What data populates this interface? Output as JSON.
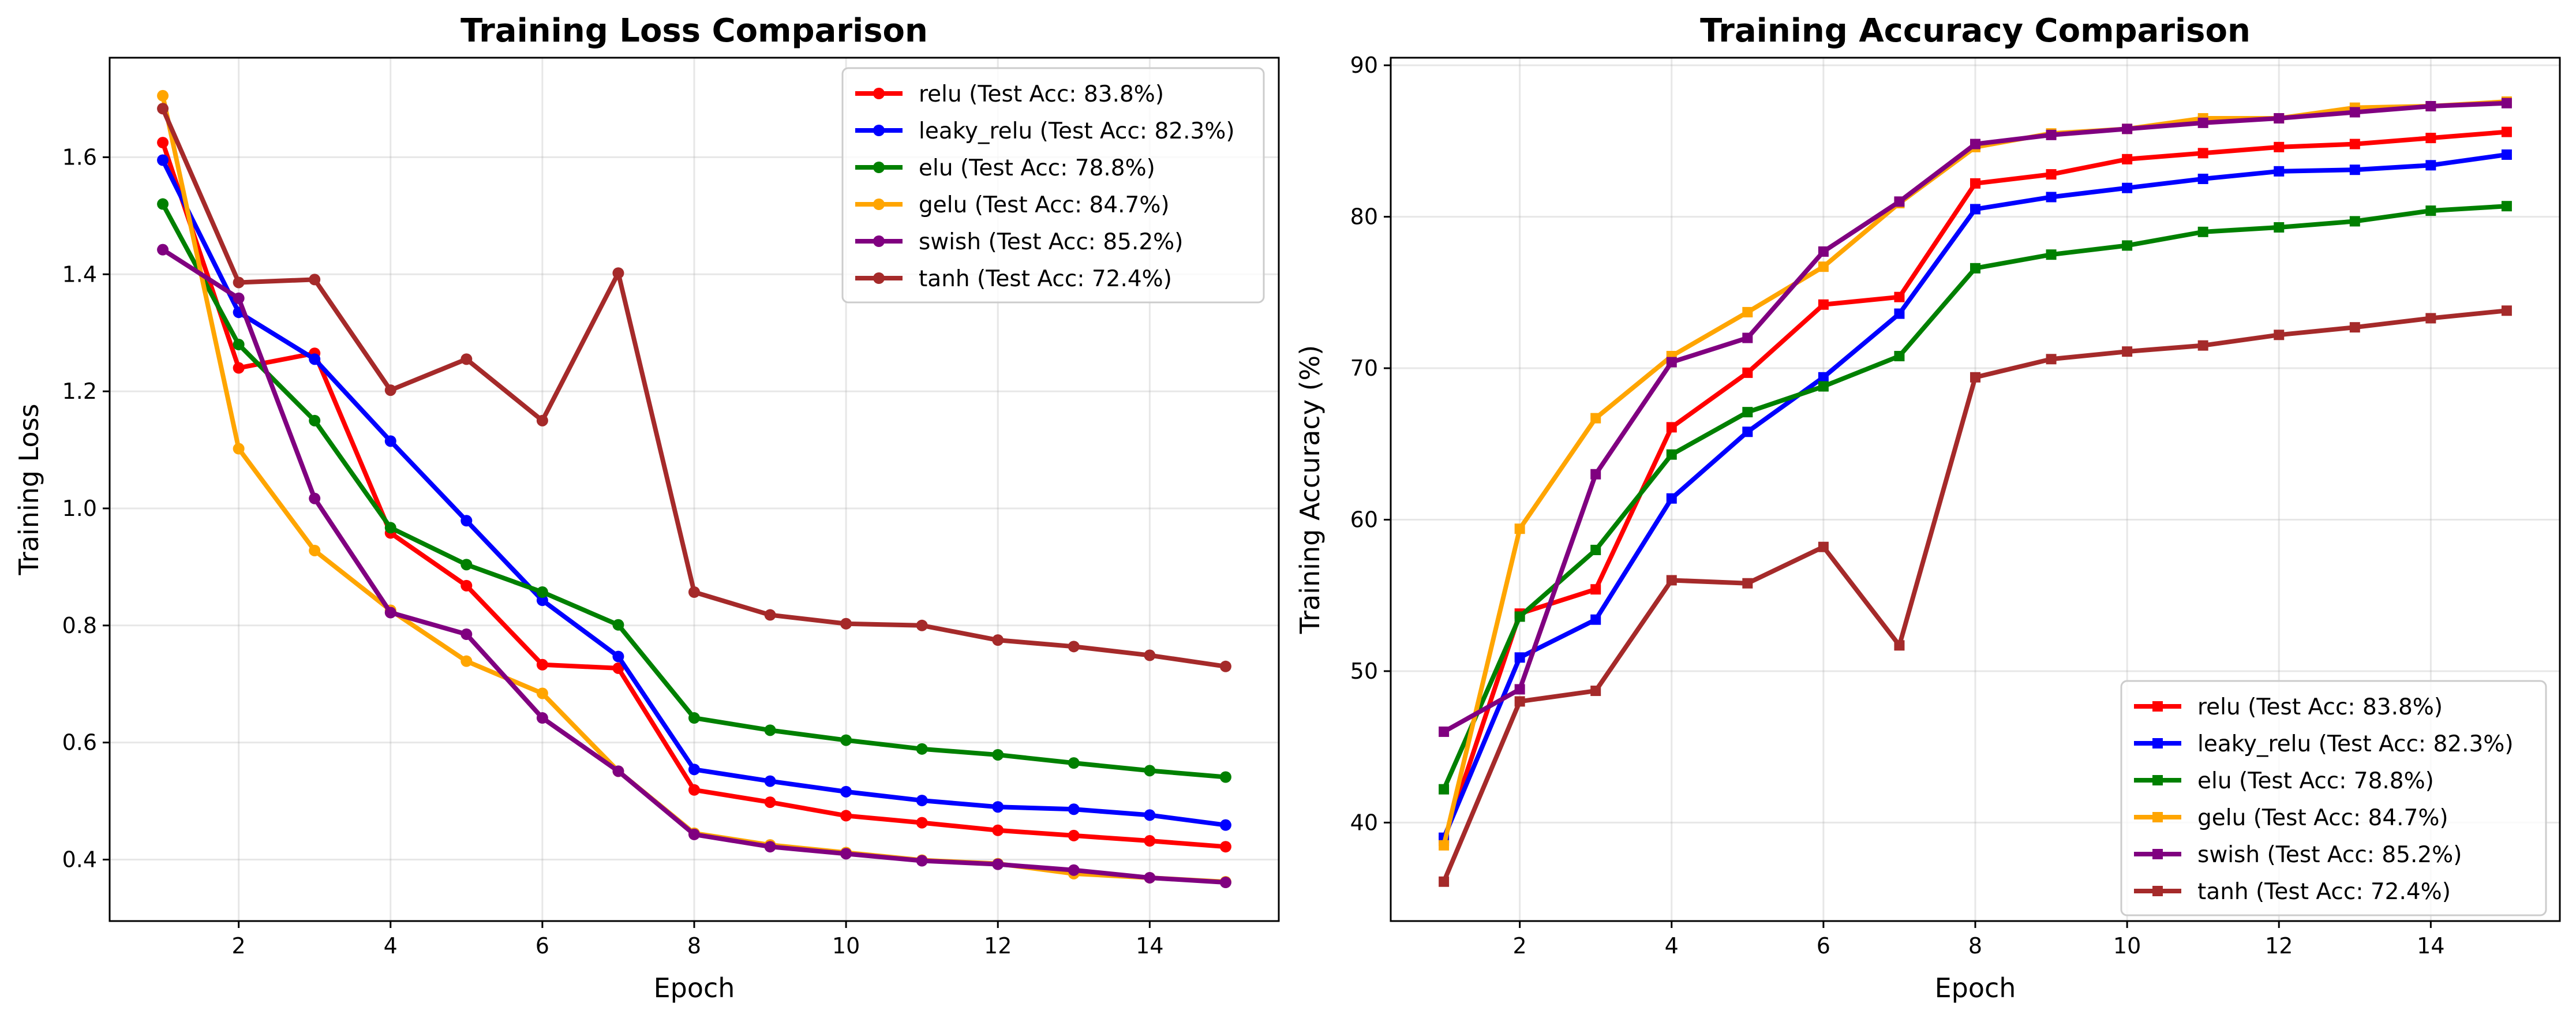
{
  "chart_data": [
    {
      "type": "line",
      "title": "Training Loss Comparison",
      "xlabel": "Epoch",
      "ylabel": "Training Loss",
      "xlim": [
        0.3,
        15.7
      ],
      "ylim": [
        0.295,
        1.77
      ],
      "xticks": [
        2,
        4,
        6,
        8,
        10,
        12,
        14
      ],
      "yticks": [
        0.4,
        0.6,
        0.8,
        1.0,
        1.2,
        1.4,
        1.6
      ],
      "ytick_labels": [
        "0.4",
        "0.6",
        "0.8",
        "1.0",
        "1.2",
        "1.4",
        "1.6"
      ],
      "grid": true,
      "marker": "circle",
      "legend_position": "upper right",
      "x": [
        1,
        2,
        3,
        4,
        5,
        6,
        7,
        8,
        9,
        10,
        11,
        12,
        13,
        14,
        15
      ],
      "series": [
        {
          "name": "relu (Test Acc: 83.8%)",
          "color": "#ff0000",
          "values": [
            1.625,
            1.24,
            1.265,
            0.958,
            0.868,
            0.733,
            0.727,
            0.519,
            0.498,
            0.475,
            0.463,
            0.45,
            0.441,
            0.432,
            0.422
          ]
        },
        {
          "name": "leaky_relu (Test Acc: 82.3%)",
          "color": "#0000ff",
          "values": [
            1.595,
            1.335,
            1.255,
            1.115,
            0.979,
            0.843,
            0.747,
            0.554,
            0.534,
            0.516,
            0.501,
            0.49,
            0.486,
            0.476,
            0.459
          ]
        },
        {
          "name": "elu (Test Acc: 78.8%)",
          "color": "#008000",
          "values": [
            1.52,
            1.28,
            1.15,
            0.967,
            0.904,
            0.857,
            0.801,
            0.642,
            0.621,
            0.604,
            0.589,
            0.579,
            0.565,
            0.552,
            0.541
          ]
        },
        {
          "name": "gelu (Test Acc: 84.7%)",
          "color": "#ffa500",
          "values": [
            1.705,
            1.102,
            0.928,
            0.826,
            0.739,
            0.684,
            0.551,
            0.445,
            0.425,
            0.412,
            0.399,
            0.393,
            0.376,
            0.369,
            0.362
          ]
        },
        {
          "name": "swish (Test Acc: 85.2%)",
          "color": "#800080",
          "values": [
            1.442,
            1.359,
            1.017,
            0.822,
            0.785,
            0.642,
            0.551,
            0.443,
            0.422,
            0.41,
            0.398,
            0.392,
            0.382,
            0.369,
            0.361
          ]
        },
        {
          "name": "tanh (Test Acc: 72.4%)",
          "color": "#a52a2a",
          "values": [
            1.683,
            1.386,
            1.391,
            1.202,
            1.255,
            1.15,
            1.402,
            0.857,
            0.818,
            0.803,
            0.8,
            0.775,
            0.764,
            0.749,
            0.73
          ]
        }
      ]
    },
    {
      "type": "line",
      "title": "Training Accuracy Comparison",
      "xlabel": "Epoch",
      "ylabel": "Training Accuracy (%)",
      "xlim": [
        0.3,
        15.7
      ],
      "ylim": [
        33.5,
        90.5
      ],
      "xticks": [
        2,
        4,
        6,
        8,
        10,
        12,
        14
      ],
      "yticks": [
        40,
        50,
        60,
        70,
        80,
        90
      ],
      "ytick_labels": [
        "40",
        "50",
        "60",
        "70",
        "80",
        "90"
      ],
      "grid": true,
      "marker": "square",
      "legend_position": "lower right",
      "x": [
        1,
        2,
        3,
        4,
        5,
        6,
        7,
        8,
        9,
        10,
        11,
        12,
        13,
        14,
        15
      ],
      "series": [
        {
          "name": "relu (Test Acc: 83.8%)",
          "color": "#ff0000",
          "values": [
            38.8,
            53.8,
            55.4,
            66.1,
            69.7,
            74.2,
            74.7,
            82.2,
            82.8,
            83.8,
            84.2,
            84.6,
            84.8,
            85.2,
            85.6
          ]
        },
        {
          "name": "leaky_relu (Test Acc: 82.3%)",
          "color": "#0000ff",
          "values": [
            39.0,
            50.9,
            53.4,
            61.4,
            65.8,
            69.4,
            73.6,
            80.5,
            81.3,
            81.9,
            82.5,
            83.0,
            83.1,
            83.4,
            84.1
          ]
        },
        {
          "name": "elu (Test Acc: 78.8%)",
          "color": "#008000",
          "values": [
            42.2,
            53.6,
            58.0,
            64.3,
            67.1,
            68.8,
            70.8,
            76.6,
            77.5,
            78.1,
            79.0,
            79.3,
            79.7,
            80.4,
            80.7
          ]
        },
        {
          "name": "gelu (Test Acc: 84.7%)",
          "color": "#ffa500",
          "values": [
            38.5,
            59.4,
            66.7,
            70.8,
            73.7,
            76.7,
            80.9,
            84.6,
            85.5,
            85.8,
            86.5,
            86.5,
            87.2,
            87.3,
            87.6
          ]
        },
        {
          "name": "swish (Test Acc: 85.2%)",
          "color": "#800080",
          "values": [
            46.0,
            48.8,
            63.0,
            70.4,
            72.0,
            77.7,
            81.0,
            84.8,
            85.4,
            85.8,
            86.2,
            86.5,
            86.9,
            87.3,
            87.5
          ]
        },
        {
          "name": "tanh (Test Acc: 72.4%)",
          "color": "#a52a2a",
          "values": [
            36.1,
            48.0,
            48.7,
            56.0,
            55.8,
            58.2,
            51.7,
            69.4,
            70.6,
            71.1,
            71.5,
            72.2,
            72.7,
            73.3,
            73.8
          ]
        }
      ]
    }
  ]
}
